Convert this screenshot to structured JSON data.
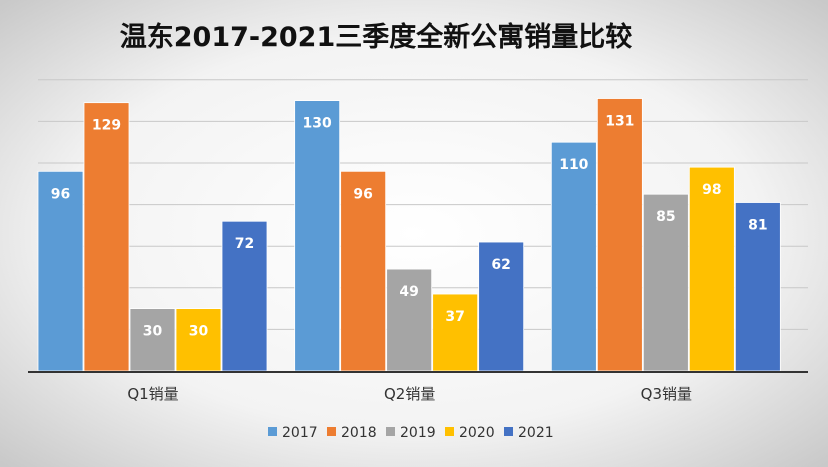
{
  "chart_data": {
    "type": "bar",
    "title": "温东2017-2021三季度全新公寓销量比较",
    "categories": [
      "Q1销量",
      "Q2销量",
      "Q3销量"
    ],
    "series": [
      {
        "name": "2017",
        "color": "#5b9bd5",
        "values": [
          96,
          130,
          110
        ]
      },
      {
        "name": "2018",
        "color": "#ed7d31",
        "values": [
          129,
          96,
          131
        ]
      },
      {
        "name": "2019",
        "color": "#a5a5a5",
        "values": [
          30,
          49,
          85
        ]
      },
      {
        "name": "2020",
        "color": "#ffc000",
        "values": [
          30,
          37,
          98
        ]
      },
      {
        "name": "2021",
        "color": "#4472c4",
        "values": [
          72,
          62,
          81
        ]
      }
    ],
    "ylim": [
      0,
      140
    ],
    "grid": true,
    "legend": "bottom",
    "data_labels": true
  }
}
